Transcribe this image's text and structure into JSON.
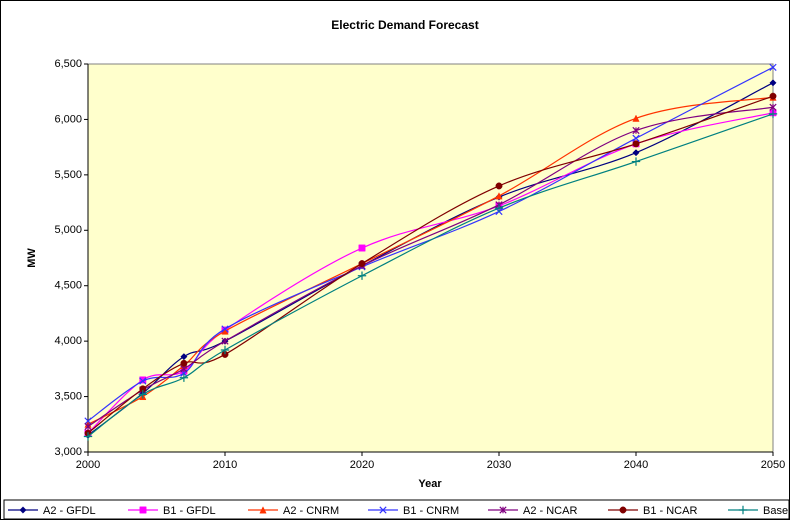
{
  "chart_data": {
    "type": "line",
    "title": "Electric Demand Forecast",
    "x_label": "Year",
    "y_label": "MW",
    "x": [
      2000,
      2004,
      2007,
      2010,
      2020,
      2030,
      2040,
      2050
    ],
    "series": [
      {
        "name": "A2 - GFDL",
        "color": "#000080",
        "marker": "diamond",
        "values": [
          3150,
          3530,
          3860,
          4000,
          4680,
          5300,
          5700,
          6330
        ]
      },
      {
        "name": "B1 - GFDL",
        "color": "#ff00ff",
        "marker": "square",
        "values": [
          3170,
          3650,
          3730,
          4100,
          4840,
          5220,
          5780,
          6060
        ]
      },
      {
        "name": "A2 - CNRM",
        "color": "#ff3300",
        "marker": "triangle",
        "values": [
          3250,
          3500,
          3780,
          4090,
          4700,
          5310,
          6010,
          6200
        ]
      },
      {
        "name": "B1 - CNRM",
        "color": "#3333ff",
        "marker": "x",
        "values": [
          3280,
          3640,
          3710,
          4110,
          4670,
          5170,
          5830,
          6470
        ]
      },
      {
        "name": "A2 - NCAR",
        "color": "#800080",
        "marker": "star",
        "values": [
          3230,
          3560,
          3750,
          4000,
          4680,
          5230,
          5900,
          6110
        ]
      },
      {
        "name": "B1 - NCAR",
        "color": "#800000",
        "marker": "circle",
        "values": [
          3170,
          3570,
          3800,
          3880,
          4700,
          5400,
          5780,
          6210
        ]
      },
      {
        "name": "Base",
        "color": "#008080",
        "marker": "plus",
        "values": [
          3140,
          3520,
          3670,
          3920,
          4590,
          5200,
          5620,
          6050
        ]
      }
    ],
    "xlim": [
      2000,
      2050
    ],
    "xticks": [
      2000,
      2010,
      2020,
      2030,
      2040,
      2050
    ],
    "ylim": [
      3000,
      6500
    ],
    "yticks": [
      {
        "value": 3000,
        "label": "3,000"
      },
      {
        "value": 3500,
        "label": "3,500"
      },
      {
        "value": 4000,
        "label": "4,000"
      },
      {
        "value": 4500,
        "label": "4,500"
      },
      {
        "value": 5000,
        "label": "5,000"
      },
      {
        "value": 5500,
        "label": "5,500"
      },
      {
        "value": 6000,
        "label": "6,000"
      },
      {
        "value": 6500,
        "label": "6,500"
      }
    ],
    "grid": false,
    "smooth": true,
    "legend": "bottom",
    "plot_background": "#ffffcc"
  }
}
